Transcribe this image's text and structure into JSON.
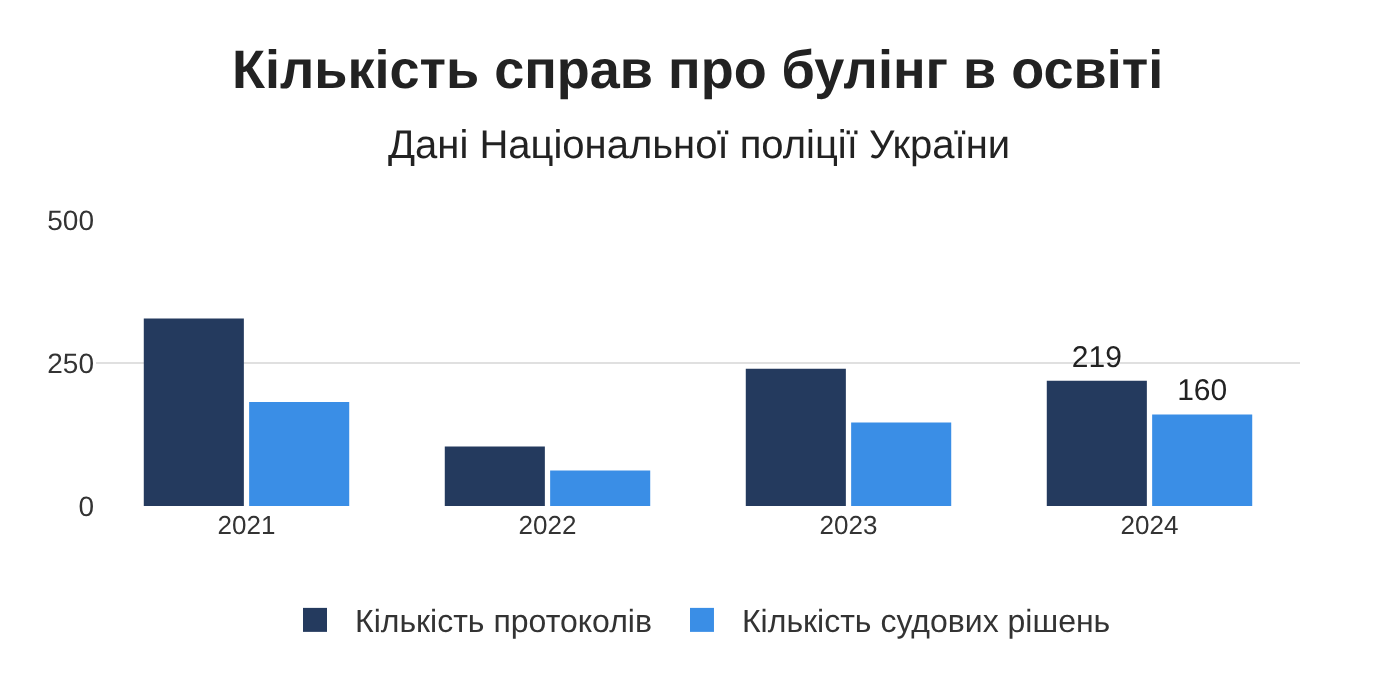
{
  "chart_data": {
    "type": "bar",
    "title": "Кількість справ про булінг в освіті",
    "subtitle": "Дані Національної поліції України",
    "categories": [
      "2021",
      "2022",
      "2023",
      "2024"
    ],
    "series": [
      {
        "name": "Кількість протоколів",
        "color": "#243a5e",
        "values": [
          328,
          104,
          240,
          219
        ],
        "value_labels": [
          null,
          null,
          null,
          "219"
        ]
      },
      {
        "name": "Кількість судових рішень",
        "color": "#3a8ee6",
        "values": [
          182,
          62,
          146,
          160
        ],
        "value_labels": [
          null,
          null,
          null,
          "160"
        ]
      }
    ],
    "ylim": [
      0,
      500
    ],
    "yticks": [
      0,
      250,
      500
    ],
    "grid": "y",
    "legend": "bottom"
  }
}
